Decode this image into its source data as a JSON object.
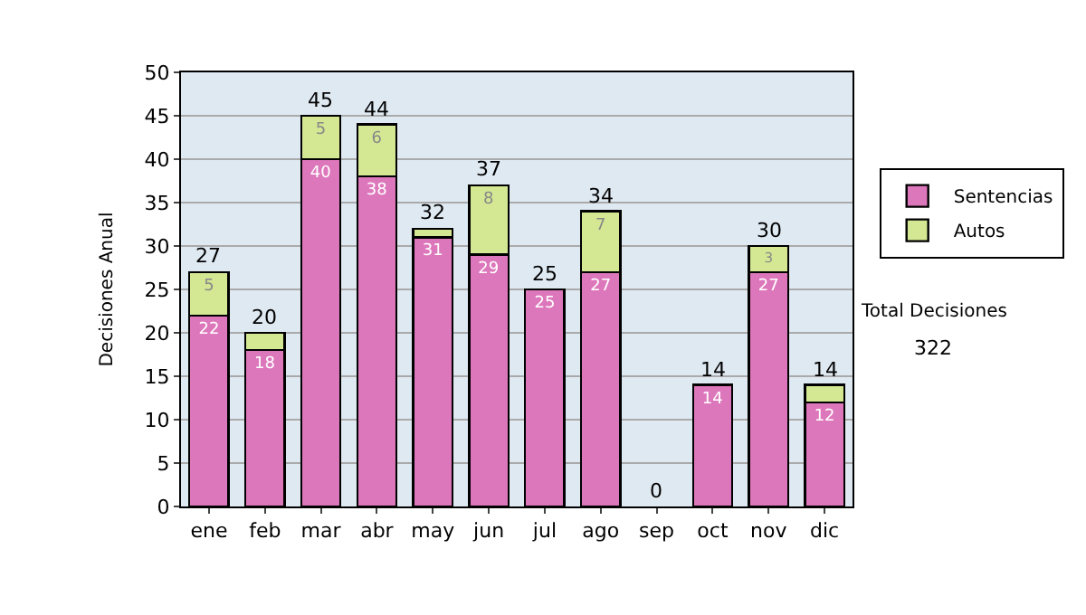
{
  "chart_data": {
    "type": "bar",
    "stacked": true,
    "ylabel": "Decisiones Anual",
    "categories": [
      "ene",
      "feb",
      "mar",
      "abr",
      "may",
      "jun",
      "jul",
      "ago",
      "sep",
      "oct",
      "nov",
      "dic"
    ],
    "series": [
      {
        "name": "Sentencias",
        "color": "#dd77bb",
        "values": [
          22,
          18,
          40,
          38,
          31,
          29,
          25,
          27,
          0,
          14,
          27,
          12
        ],
        "value_labels": [
          "22",
          "18",
          "40",
          "38",
          "31",
          "29",
          "25",
          "27",
          null,
          "14",
          "27",
          "12"
        ]
      },
      {
        "name": "Autos",
        "color": "#d4e894",
        "values": [
          5,
          2,
          5,
          6,
          1,
          8,
          0,
          7,
          0,
          0,
          3,
          2
        ],
        "value_labels": [
          "5",
          null,
          "5",
          "6",
          null,
          "8",
          null,
          "7",
          null,
          null,
          "3",
          null
        ]
      }
    ],
    "totals": [
      "27",
      "20",
      "45",
      "44",
      "32",
      "37",
      "25",
      "34",
      "0",
      "14",
      "30",
      "14"
    ],
    "ylim": [
      0,
      50
    ],
    "yticks": [
      0,
      5,
      10,
      15,
      20,
      25,
      30,
      35,
      40,
      45,
      50
    ],
    "grid": "y",
    "legend": "right",
    "annotations": [
      "Total Decisiones",
      "322"
    ]
  }
}
